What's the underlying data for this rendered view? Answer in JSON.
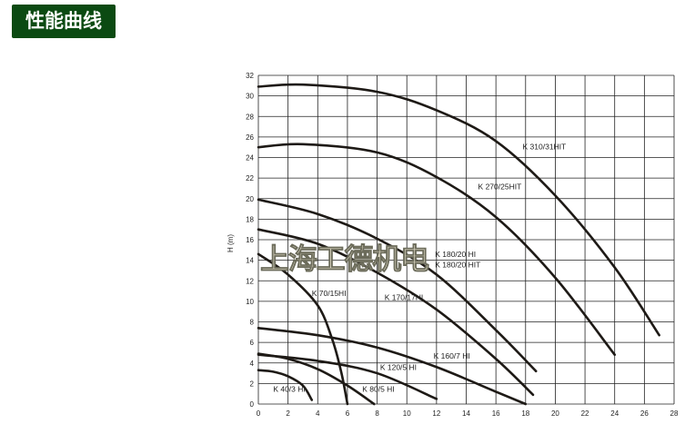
{
  "header": {
    "title": "性能曲线"
  },
  "watermark": "上海工德机电",
  "chart_data": {
    "type": "line",
    "title": "",
    "xlabel": "",
    "ylabel": "H (m)",
    "xlim": [
      0,
      28
    ],
    "ylim": [
      0,
      32
    ],
    "xticks": [
      0,
      2,
      4,
      6,
      8,
      10,
      12,
      14,
      16,
      18,
      20,
      22,
      24,
      26,
      28
    ],
    "yticks": [
      0,
      2,
      4,
      6,
      8,
      10,
      12,
      14,
      16,
      18,
      20,
      22,
      24,
      26,
      28,
      30,
      32
    ],
    "grid": true,
    "series": [
      {
        "name": "K 40/3 HI",
        "x": [
          0,
          1,
          2,
          3,
          3.6
        ],
        "y": [
          3.3,
          3.15,
          2.7,
          1.8,
          0.4
        ]
      },
      {
        "name": "K 80/5 HI",
        "x": [
          0,
          2,
          4,
          6,
          7.8
        ],
        "y": [
          4.9,
          4.4,
          3.4,
          1.8,
          0
        ]
      },
      {
        "name": "K 70/15HI",
        "x": [
          0,
          2,
          4,
          5,
          5.6,
          6
        ],
        "y": [
          14.6,
          12.6,
          9.6,
          6.2,
          3,
          0
        ]
      },
      {
        "name": "K 120/5 HI",
        "x": [
          0,
          4,
          8,
          12
        ],
        "y": [
          4.8,
          4.2,
          3,
          0.5
        ]
      },
      {
        "name": "K 160/7 HI",
        "x": [
          0,
          4,
          8,
          12,
          16,
          18
        ],
        "y": [
          7.4,
          6.7,
          5.5,
          3.6,
          1.2,
          0
        ]
      },
      {
        "name": "K 170/17HI",
        "x": [
          0,
          4,
          8,
          12,
          16,
          18.5
        ],
        "y": [
          17,
          15.6,
          12.8,
          9.2,
          4.4,
          0.9
        ]
      },
      {
        "name": "K 180/20 HI",
        "x": [
          0,
          4,
          8,
          12,
          16,
          18.7
        ],
        "y": [
          19.9,
          18.5,
          16.1,
          12.6,
          7.2,
          3.2
        ]
      },
      {
        "name": "K 270/25HIT",
        "x": [
          0,
          3,
          8,
          12,
          16,
          20,
          24
        ],
        "y": [
          25,
          25.3,
          24.5,
          22.1,
          18.2,
          12.3,
          4.8
        ]
      },
      {
        "name": "K 310/31HIT",
        "x": [
          0,
          3,
          8,
          12,
          16,
          20,
          24,
          27
        ],
        "y": [
          30.9,
          31.1,
          30.4,
          28.6,
          25.6,
          20.3,
          13.3,
          6.7
        ]
      }
    ],
    "labels": [
      {
        "text": "K 40/3 HI",
        "x": 1,
        "y": 1.2
      },
      {
        "text": "K 80/5 HI",
        "x": 7,
        "y": 1.2
      },
      {
        "text": "K 70/15HI",
        "x": 3.6,
        "y": 10.5
      },
      {
        "text": "K 120/5 HI",
        "x": 8.2,
        "y": 3.3
      },
      {
        "text": "K 160/7 HI",
        "x": 11.8,
        "y": 4.4
      },
      {
        "text": "K 170/17HI",
        "x": 8.5,
        "y": 10.1
      },
      {
        "text": "K 180/20 HI",
        "x": 11.9,
        "y": 14.3
      },
      {
        "text": "K 180/20 HIT",
        "x": 11.9,
        "y": 13.3
      },
      {
        "text": "K 270/25HIT",
        "x": 14.8,
        "y": 20.9
      },
      {
        "text": "K 310/31HIT",
        "x": 17.8,
        "y": 24.8
      }
    ]
  }
}
